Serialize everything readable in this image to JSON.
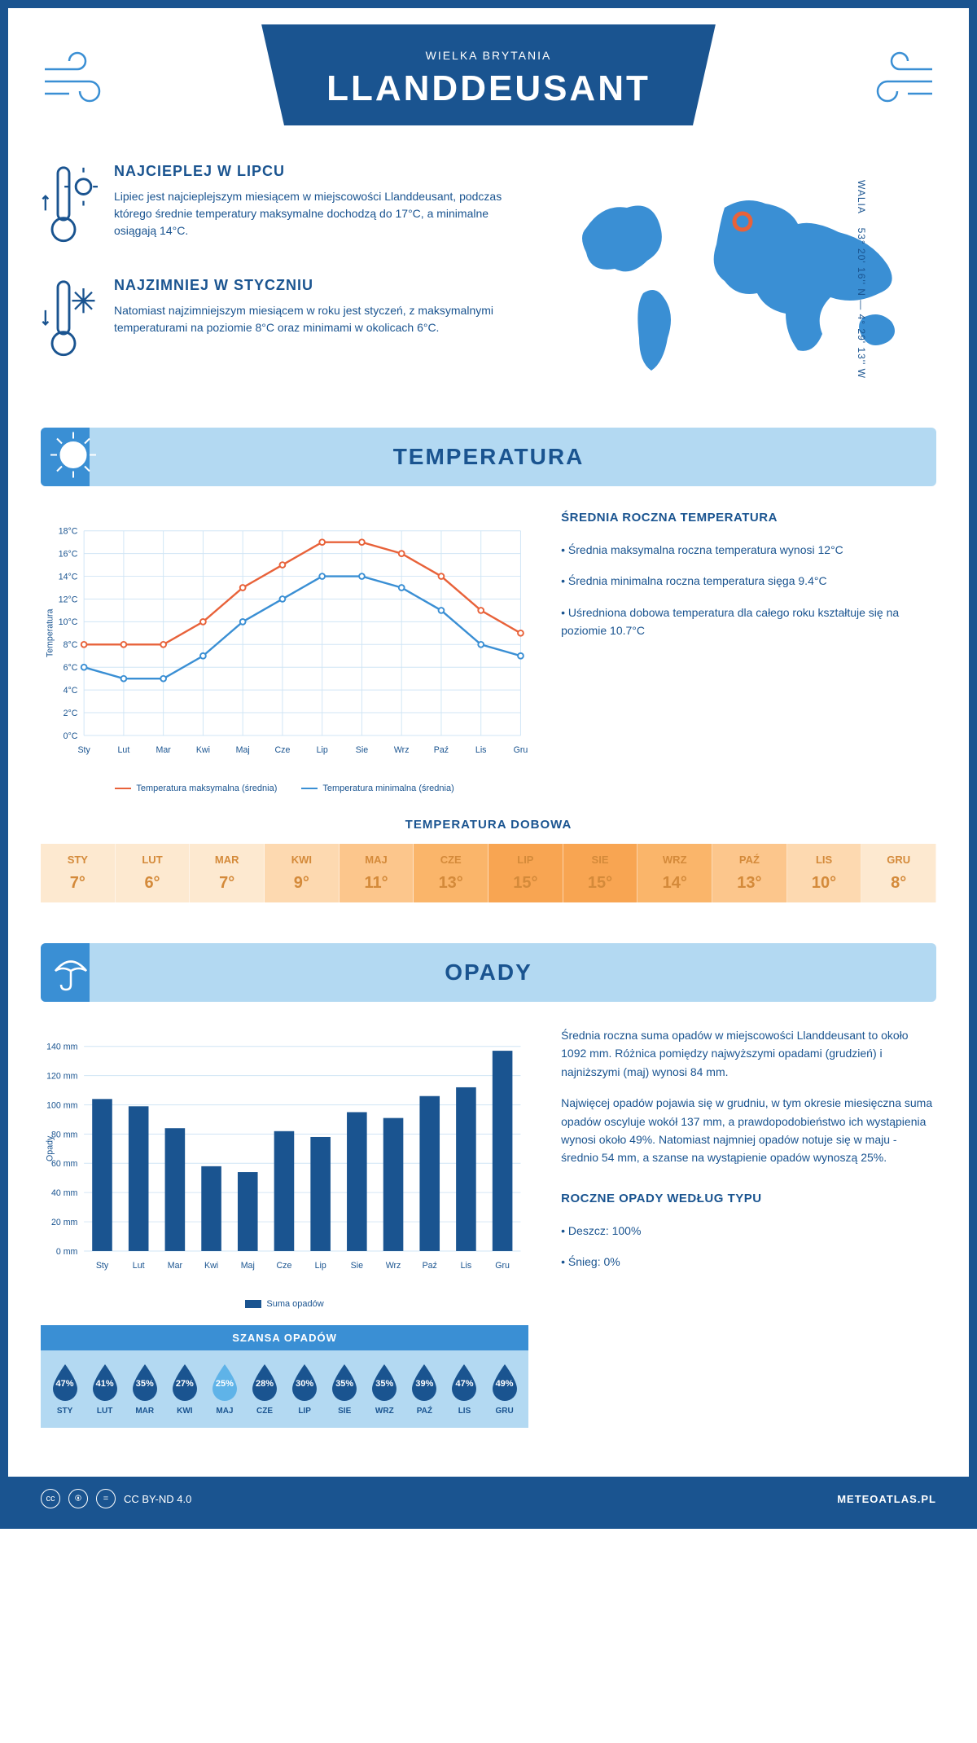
{
  "colors": {
    "primary": "#1a5490",
    "accent": "#3a8fd4",
    "light": "#b3d9f2",
    "max_line": "#e8623a",
    "min_line": "#3a8fd4",
    "bar": "#1a5490",
    "drop_dark": "#1a5490",
    "drop_light": "#5fb3e8"
  },
  "header": {
    "title": "LLANDDEUSANT",
    "subtitle": "WIELKA BRYTANIA"
  },
  "coords": {
    "text": "53° 20' 16'' N — 4° 29' 13'' W",
    "region": "WALIA"
  },
  "facts": {
    "hot": {
      "title": "NAJCIEPLEJ W LIPCU",
      "body": "Lipiec jest najcieplejszym miesiącem w miejscowości Llanddeusant, podczas którego średnie temperatury maksymalne dochodzą do 17°C, a minimalne osiągają 14°C."
    },
    "cold": {
      "title": "NAJZIMNIEJ W STYCZNIU",
      "body": "Natomiast najzimniejszym miesiącem w roku jest styczeń, z maksymalnymi temperaturami na poziomie 8°C oraz minimami w okolicach 6°C."
    }
  },
  "months": [
    "Sty",
    "Lut",
    "Mar",
    "Kwi",
    "Maj",
    "Cze",
    "Lip",
    "Sie",
    "Wrz",
    "Paź",
    "Lis",
    "Gru"
  ],
  "months_upper": [
    "STY",
    "LUT",
    "MAR",
    "KWI",
    "MAJ",
    "CZE",
    "LIP",
    "SIE",
    "WRZ",
    "PAŹ",
    "LIS",
    "GRU"
  ],
  "temperature": {
    "section_title": "TEMPERATURA",
    "max_series": [
      8,
      8,
      8,
      10,
      13,
      15,
      17,
      17,
      16,
      14,
      11,
      9
    ],
    "min_series": [
      6,
      5,
      5,
      7,
      10,
      12,
      14,
      14,
      13,
      11,
      8,
      7
    ],
    "ylim": [
      0,
      18
    ],
    "ytick_step": 2,
    "y_unit": "°C",
    "y_axis_title": "Temperatura",
    "legend_max": "Temperatura maksymalna (średnia)",
    "legend_min": "Temperatura minimalna (średnia)",
    "side": {
      "title": "ŚREDNIA ROCZNA TEMPERATURA",
      "bullets": [
        "Średnia maksymalna roczna temperatura wynosi 12°C",
        "Średnia minimalna roczna temperatura sięga 9.4°C",
        "Uśredniona dobowa temperatura dla całego roku kształtuje się na poziomie 10.7°C"
      ]
    },
    "daily": {
      "title": "TEMPERATURA DOBOWA",
      "values": [
        7,
        6,
        7,
        9,
        11,
        13,
        15,
        15,
        14,
        13,
        10,
        8
      ],
      "heat_colors": [
        "#fde9d0",
        "#fde9d0",
        "#fde9d0",
        "#fdd9b0",
        "#fcc68c",
        "#fab56a",
        "#f8a552",
        "#f8a552",
        "#fab56a",
        "#fcc68c",
        "#fdd9b0",
        "#fde9d0"
      ],
      "text_color": "#d48a3a",
      "unit": "°"
    }
  },
  "precipitation": {
    "section_title": "OPADY",
    "values": [
      104,
      99,
      84,
      58,
      54,
      82,
      78,
      95,
      91,
      106,
      112,
      137
    ],
    "ylim": [
      0,
      140
    ],
    "ytick_step": 20,
    "y_unit": " mm",
    "y_axis_title": "Opady",
    "legend": "Suma opadów",
    "side_paragraphs": [
      "Średnia roczna suma opadów w miejscowości Llanddeusant to około 1092 mm. Różnica pomiędzy najwyższymi opadami (grudzień) i najniższymi (maj) wynosi 84 mm.",
      "Najwięcej opadów pojawia się w grudniu, w tym okresie miesięczna suma opadów oscyluje wokół 137 mm, a prawdopodobieństwo ich wystąpienia wynosi około 49%. Natomiast najmniej opadów notuje się w maju - średnio 54 mm, a szanse na wystąpienie opadów wynoszą 25%."
    ],
    "chance": {
      "title": "SZANSA OPADÓW",
      "values": [
        47,
        41,
        35,
        27,
        25,
        28,
        30,
        35,
        35,
        39,
        47,
        49
      ],
      "min_index": 4
    },
    "type": {
      "title": "ROCZNE OPADY WEDŁUG TYPU",
      "bullets": [
        "Deszcz: 100%",
        "Śnieg: 0%"
      ]
    }
  },
  "footer": {
    "license": "CC BY-ND 4.0",
    "site": "METEOATLAS.PL"
  }
}
